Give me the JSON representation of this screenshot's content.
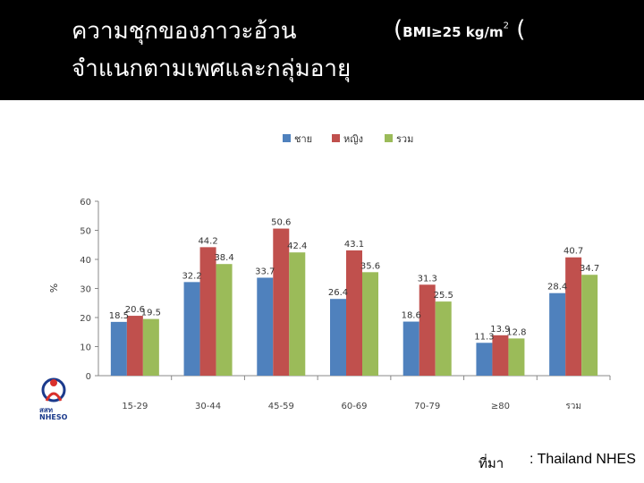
{
  "header": {
    "title_line1": "ความชุกของภาวะอ้วน",
    "title_bmi_open": "(",
    "title_bmi_text": "BMI≥25 kg/m",
    "title_bmi_sup": "2",
    "title_bmi_close": "(",
    "title_line2": "จำแนกตามเพศและกลุ่มอายุ"
  },
  "source": {
    "label": "ที่มา",
    "value": ": Thailand NHES"
  },
  "logo": {
    "text_top": "สสท",
    "text_bottom": "NHESO"
  },
  "colors": {
    "male": "#4f81bd",
    "female": "#c0504d",
    "total": "#9bbb59",
    "header_bg": "#000000",
    "header_text": "#ffffff"
  },
  "chart_data": {
    "type": "bar",
    "title": "",
    "xlabel": "",
    "ylabel": "%",
    "ylim": [
      0,
      60
    ],
    "yticks": [
      0,
      10,
      20,
      30,
      40,
      50,
      60
    ],
    "grid": false,
    "legend_position": "top",
    "categories": [
      "15-29",
      "30-44",
      "45-59",
      "60-69",
      "70-79",
      "≥80",
      "รวม"
    ],
    "series": [
      {
        "name": "ชาย",
        "color": "#4f81bd",
        "values": [
          18.5,
          32.2,
          33.7,
          26.4,
          18.6,
          11.3,
          28.4
        ]
      },
      {
        "name": "หญิง",
        "color": "#c0504d",
        "values": [
          20.6,
          44.2,
          50.6,
          43.1,
          31.3,
          13.9,
          40.7
        ]
      },
      {
        "name": "รวม",
        "color": "#9bbb59",
        "values": [
          19.5,
          38.4,
          42.4,
          35.6,
          25.5,
          12.8,
          34.7
        ]
      }
    ]
  }
}
